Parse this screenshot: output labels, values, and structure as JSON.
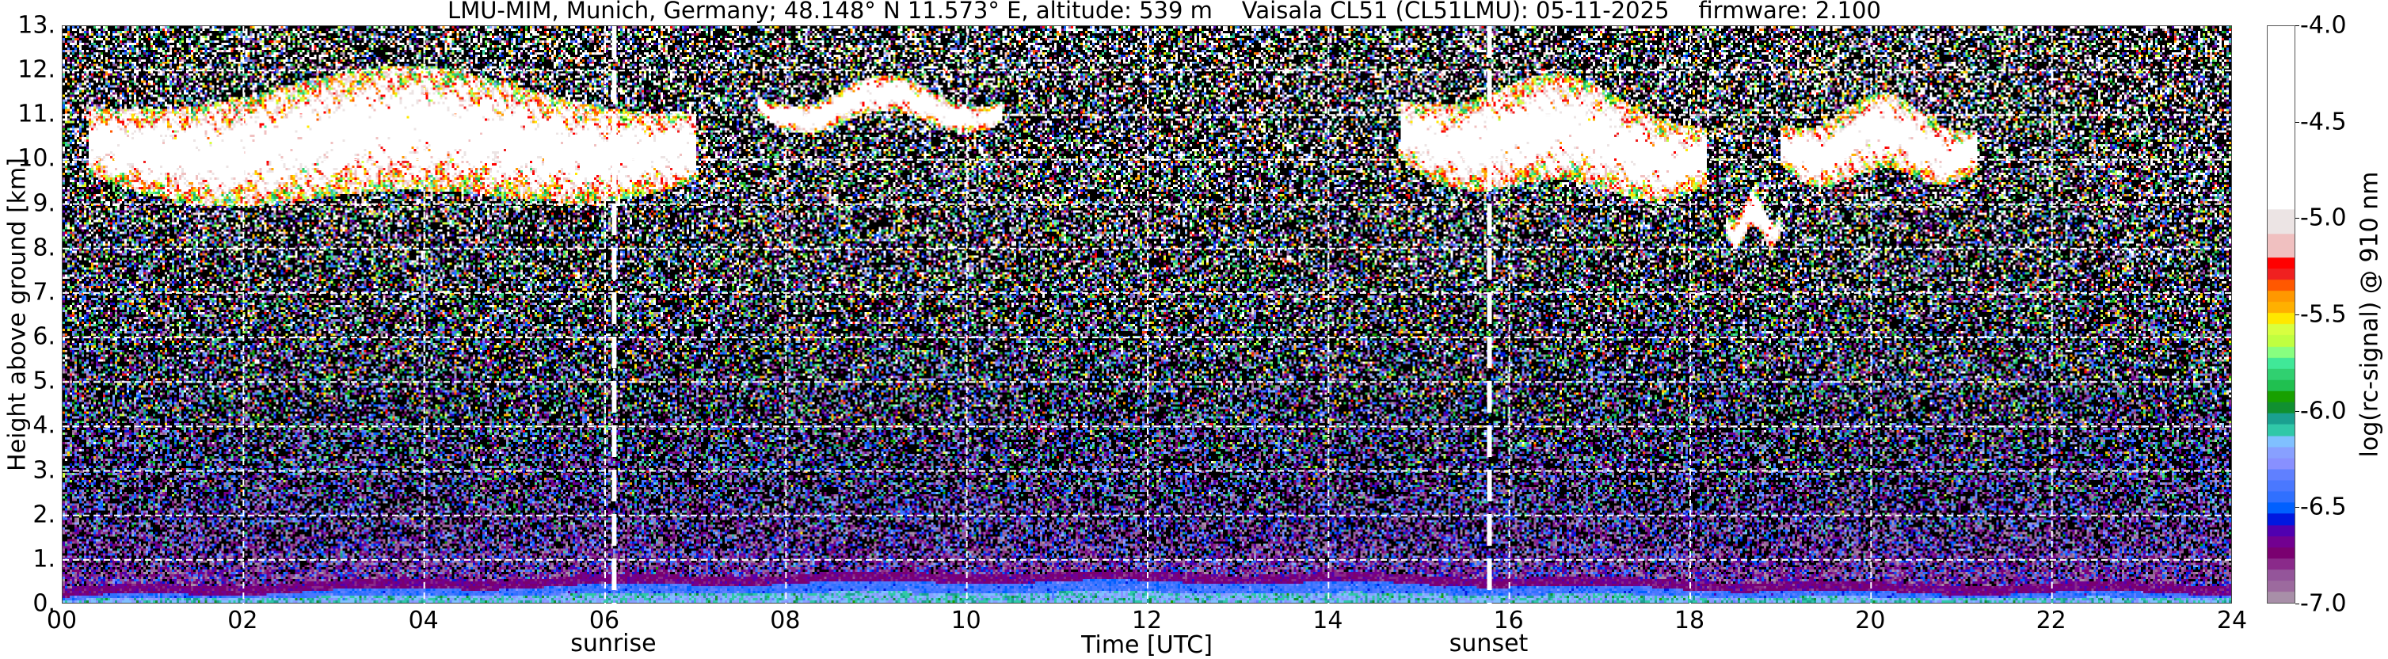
{
  "chart_data": {
    "type": "heatmap",
    "title": "LMU-MIM, Munich, Germany; 48.148° N 11.573° E, altitude: 539 m    Vaisala CL51 (CL51LMU): 05-11-2025    firmware: 2.100",
    "xlabel": "Time [UTC]",
    "ylabel": "Height above ground [km]",
    "xlim": [
      0,
      24
    ],
    "ylim": [
      0,
      13
    ],
    "x_ticks": [
      0,
      2,
      4,
      6,
      8,
      10,
      12,
      14,
      16,
      18,
      20,
      22,
      24
    ],
    "x_tick_labels": [
      "00",
      "02",
      "04",
      "06",
      "08",
      "10",
      "12",
      "14",
      "16",
      "18",
      "20",
      "22",
      "24"
    ],
    "y_ticks": [
      0,
      1,
      2,
      3,
      4,
      5,
      6,
      7,
      8,
      9,
      10,
      11,
      12,
      13
    ],
    "y_tick_labels": [
      "0.",
      "1.",
      "2.",
      "3.",
      "4.",
      "5.",
      "6.",
      "7.",
      "8.",
      "9.",
      "10.",
      "11.",
      "12.",
      "13."
    ],
    "grid": true,
    "annotations": [
      {
        "label": "sunrise",
        "time": 6.1
      },
      {
        "label": "sunset",
        "time": 15.78
      }
    ],
    "colorbar": {
      "label": "log(rc-signal) @ 910 nm",
      "range": [
        -7.0,
        -4.0
      ],
      "ticks": [
        -4.0,
        -4.5,
        -5.0,
        -5.5,
        -6.0,
        -6.5,
        -7.0
      ],
      "tick_labels": [
        "-4.0",
        "-4.5",
        "-5.0",
        "-5.5",
        "-6.0",
        "-6.5",
        "-7.0"
      ],
      "colors_low_to_high": [
        "#a88fa8",
        "#9c6a9e",
        "#94559a",
        "#8a2a8a",
        "#7a0070",
        "#720090",
        "#5000b0",
        "#0018e0",
        "#0060ff",
        "#3070ff",
        "#4a78ff",
        "#6080ff",
        "#8890ff",
        "#88a0ff",
        "#80c0ff",
        "#30c8a8",
        "#1aa090",
        "#109030",
        "#18a000",
        "#20c050",
        "#30d070",
        "#40e898",
        "#88ff80",
        "#c0ff40",
        "#d8ff40",
        "#ffe800",
        "#ffb000",
        "#ff9800",
        "#ff5800",
        "#f02020",
        "#ff0000",
        "#f0c0c0",
        "#ece4e4",
        "#ffffff"
      ],
      "below_range_color": "#000000"
    },
    "features": [
      {
        "type": "cirrus cloud",
        "time_range": [
          0.3,
          7.0
        ],
        "height_range_km": [
          9.0,
          11.8
        ]
      },
      {
        "type": "cirrus cloud",
        "time_range": [
          7.7,
          10.4
        ],
        "height_range_km": [
          10.8,
          11.6
        ]
      },
      {
        "type": "cirrus cloud",
        "time_range": [
          14.8,
          18.2
        ],
        "height_range_km": [
          9.0,
          11.4
        ]
      },
      {
        "type": "cirrus cloud",
        "time_range": [
          18.4,
          19.0
        ],
        "height_range_km": [
          8.2,
          9.0
        ]
      },
      {
        "type": "cirrus cloud",
        "time_range": [
          19.0,
          21.2
        ],
        "height_range_km": [
          9.5,
          11.2
        ]
      },
      {
        "type": "boundary layer",
        "time_range": [
          0,
          24
        ],
        "height_range_km": [
          0.0,
          0.6
        ]
      }
    ]
  }
}
